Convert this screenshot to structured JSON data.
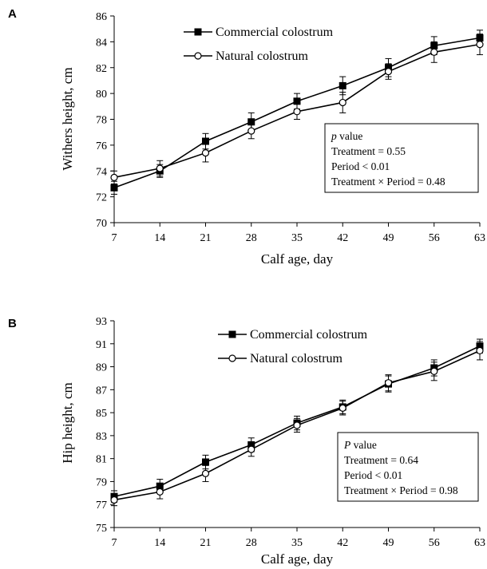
{
  "chart_data": [
    {
      "type": "line",
      "panel": "A",
      "x": [
        7,
        14,
        21,
        28,
        35,
        42,
        49,
        56,
        63
      ],
      "xlabel": "Calf age, day",
      "ylabel": "Withers height, cm",
      "ylim": [
        70,
        86
      ],
      "yticks": [
        70,
        72,
        74,
        76,
        78,
        80,
        82,
        84,
        86
      ],
      "grid": false,
      "legend_position": "top-center",
      "series": [
        {
          "name": "Commercial colostrum",
          "marker": "filled-square",
          "color": "#000000",
          "values": [
            72.7,
            74.0,
            76.3,
            77.8,
            79.4,
            80.6,
            82.0,
            83.7,
            84.3
          ],
          "errors": [
            0.5,
            0.5,
            0.6,
            0.7,
            0.6,
            0.7,
            0.7,
            0.7,
            0.6
          ]
        },
        {
          "name": "Natural colostrum",
          "marker": "open-circle",
          "color": "#000000",
          "values": [
            73.5,
            74.2,
            75.4,
            77.1,
            78.6,
            79.3,
            81.7,
            83.2,
            83.8
          ],
          "errors": [
            0.5,
            0.6,
            0.7,
            0.6,
            0.6,
            0.8,
            0.6,
            0.8,
            0.8
          ]
        }
      ],
      "stats": {
        "italic": "p",
        "heading": " value",
        "lines": [
          "Treatment = 0.55",
          "Period < 0.01",
          "Treatment × Period = 0.48"
        ]
      }
    },
    {
      "type": "line",
      "panel": "B",
      "x": [
        7,
        14,
        21,
        28,
        35,
        42,
        49,
        56,
        63
      ],
      "xlabel": "Calf age, day",
      "ylabel": "Hip height, cm",
      "ylim": [
        75,
        93
      ],
      "yticks": [
        75,
        77,
        79,
        81,
        83,
        85,
        87,
        89,
        91,
        93
      ],
      "grid": false,
      "legend_position": "top-center",
      "series": [
        {
          "name": "Commercial colostrum",
          "marker": "filled-square",
          "color": "#000000",
          "values": [
            77.7,
            78.6,
            80.7,
            82.2,
            84.1,
            85.5,
            87.5,
            88.9,
            90.8
          ],
          "errors": [
            0.5,
            0.6,
            0.6,
            0.6,
            0.6,
            0.6,
            0.7,
            0.7,
            0.6
          ]
        },
        {
          "name": "Natural colostrum",
          "marker": "open-circle",
          "color": "#000000",
          "values": [
            77.4,
            78.1,
            79.7,
            81.8,
            83.9,
            85.4,
            87.6,
            88.6,
            90.4
          ],
          "errors": [
            0.5,
            0.6,
            0.7,
            0.6,
            0.6,
            0.6,
            0.7,
            0.8,
            0.8
          ]
        }
      ],
      "stats": {
        "italic": "P",
        "heading": " value",
        "lines": [
          "Treatment = 0.64",
          "Period < 0.01",
          "Treatment × Period = 0.98"
        ]
      }
    }
  ]
}
